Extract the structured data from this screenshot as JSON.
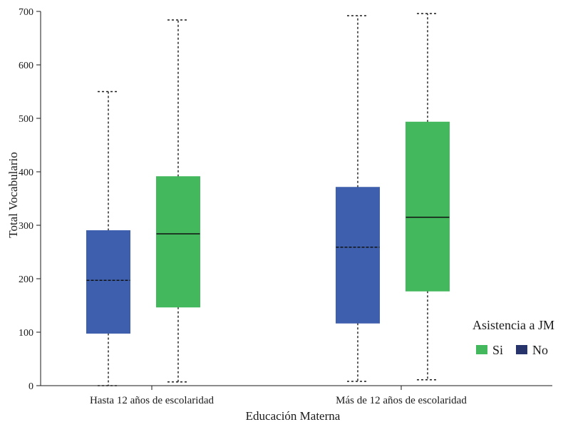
{
  "chart_data": {
    "type": "boxplot",
    "title": "",
    "xlabel": "Educación Materna",
    "ylabel": "Total Vocabulario",
    "ylim": [
      0,
      700
    ],
    "yticks": [
      0,
      100,
      200,
      300,
      400,
      500,
      600,
      700
    ],
    "categories": [
      "Hasta 12 años de escolaridad",
      "Más de 12 años de escolaridad"
    ],
    "legend": {
      "title": "Asistencia a JM",
      "placement": "bottom-right",
      "entries": [
        {
          "label": "Si",
          "color": "#43b85c"
        },
        {
          "label": "No",
          "color": "#27336b"
        }
      ]
    },
    "series": [
      {
        "name": "No",
        "color": "#3d5fad",
        "boxes": [
          {
            "min": 0,
            "q1": 98,
            "median": 197,
            "q3": 290,
            "max": 550
          },
          {
            "min": 8,
            "q1": 117,
            "median": 259,
            "q3": 371,
            "max": 692
          }
        ]
      },
      {
        "name": "Si",
        "color": "#43b85c",
        "boxes": [
          {
            "min": 7,
            "q1": 147,
            "median": 284,
            "q3": 391,
            "max": 684
          },
          {
            "min": 11,
            "q1": 177,
            "median": 315,
            "q3": 493,
            "max": 696
          }
        ]
      }
    ]
  }
}
